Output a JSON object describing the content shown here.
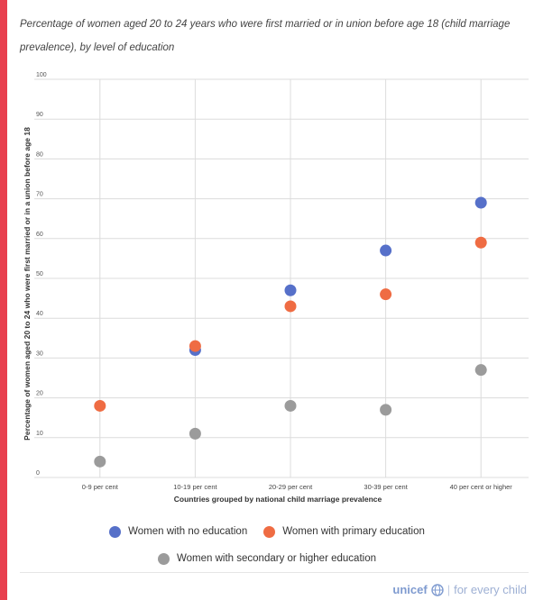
{
  "header": {
    "title": "Percentage of women aged 20 to 24 years who were first married or in union before age 18 (child marriage prevalence), by level of education"
  },
  "brand": {
    "logo_text": "unicef",
    "logo_icon": "globe-icon",
    "separator": "|",
    "tagline": "for every child"
  },
  "colors": {
    "accent": "#e8404f",
    "no_education": "#5670c9",
    "primary_education": "#ef6c43",
    "secondary_education": "#9b9b9b"
  },
  "chart_data": {
    "type": "scatter",
    "title": "Percentage of women aged 20 to 24 years who were first married or in union before age 18 (child marriage prevalence), by level of education",
    "xlabel": "Countries grouped by national child marriage prevalence",
    "ylabel": "Percentage of women aged 20 to 24 who were first married or in a union before age 18",
    "categories": [
      "0-9 per cent",
      "10-19 per cent",
      "20-29 per cent",
      "30-39 per cent",
      "40 per cent or higher"
    ],
    "ylim": [
      0,
      100
    ],
    "yticks": [
      0,
      10,
      20,
      30,
      40,
      50,
      60,
      70,
      80,
      90,
      100
    ],
    "grid": true,
    "legend_position": "bottom",
    "series": [
      {
        "name": "Women with no education",
        "color": "#5670c9",
        "values": [
          null,
          32,
          47,
          57,
          69
        ]
      },
      {
        "name": "Women with primary education",
        "color": "#ef6c43",
        "values": [
          18,
          33,
          43,
          46,
          59
        ]
      },
      {
        "name": "Women with secondary or higher education",
        "color": "#9b9b9b",
        "values": [
          4,
          11,
          18,
          17,
          27
        ]
      }
    ]
  }
}
